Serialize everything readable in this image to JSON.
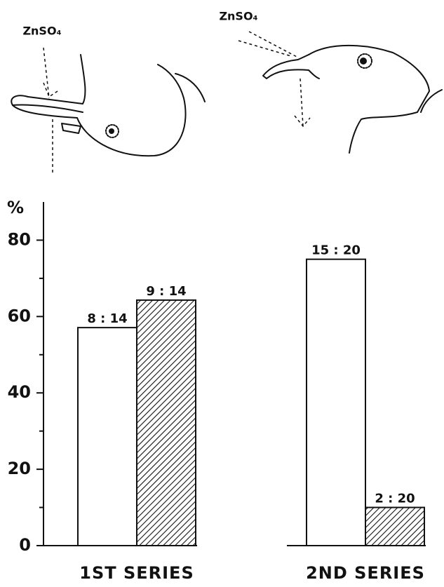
{
  "chart_data": {
    "type": "bar",
    "annotations": [
      "ZnSO₄",
      "ZnSO₄"
    ],
    "ylabel": "%",
    "categories": [
      "1ST SERIES",
      "2ND SERIES"
    ],
    "series": [
      {
        "color": "#ffffff",
        "values": [
          57.1,
          75
        ],
        "value_labels": [
          "8 : 14",
          "15 : 20"
        ]
      },
      {
        "color": "hatch",
        "values": [
          64.3,
          10
        ],
        "value_labels": [
          "9 : 14",
          "2 : 20"
        ]
      }
    ],
    "ylim": [
      0,
      90
    ],
    "yticks": [
      0,
      20,
      40,
      60,
      80
    ],
    "minor_yticks": [
      10,
      30,
      50,
      70
    ]
  }
}
